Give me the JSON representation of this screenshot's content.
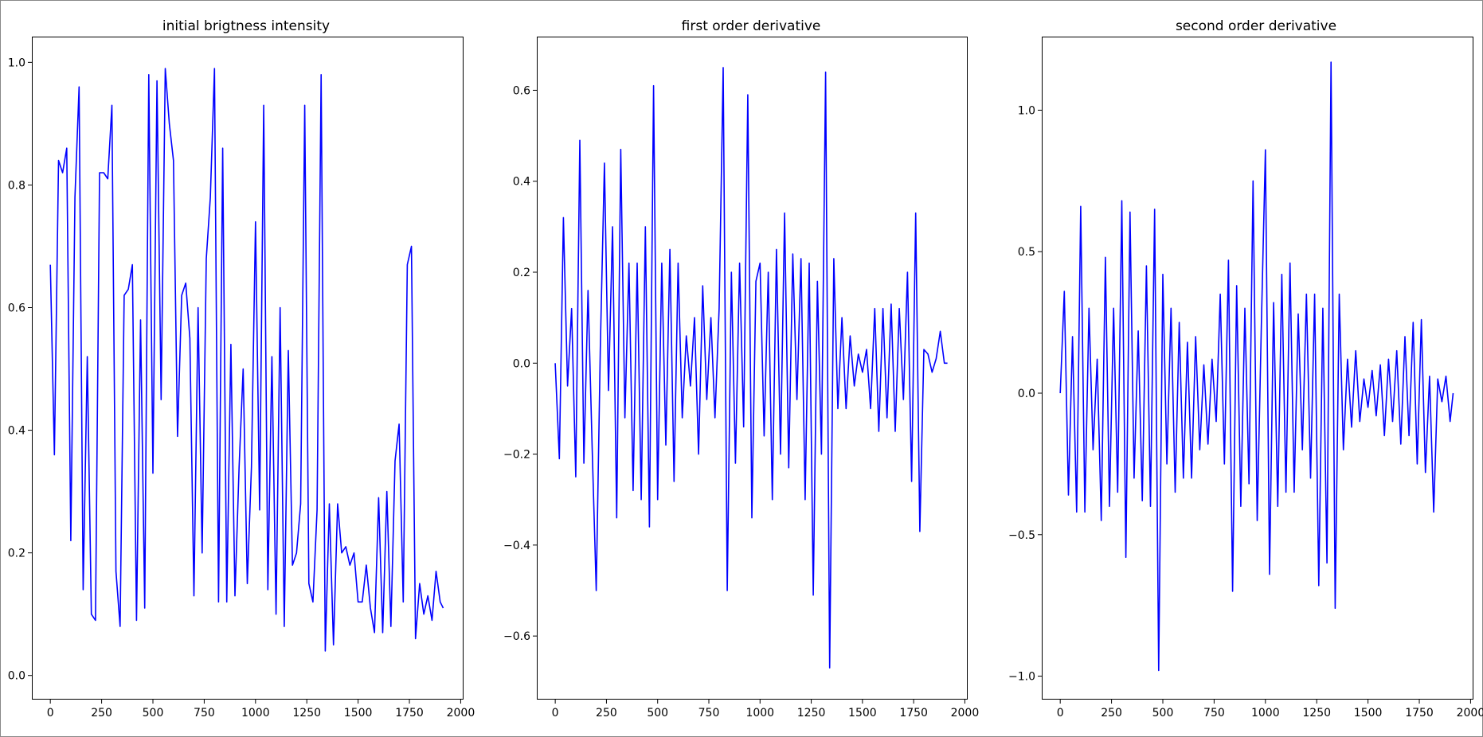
{
  "chart_data": [
    {
      "type": "line",
      "title": "initial brigtness intensity",
      "xlabel": "",
      "ylabel": "",
      "xlim": [
        -90,
        2010
      ],
      "ylim": [
        -0.038,
        1.042
      ],
      "xticks": [
        0,
        250,
        500,
        750,
        1000,
        1250,
        1500,
        1750,
        2000
      ],
      "xtick_labels": [
        "0",
        "250",
        "500",
        "750",
        "1000",
        "1250",
        "1500",
        "1750",
        "2000"
      ],
      "yticks": [
        0.0,
        0.2,
        0.4,
        0.6,
        0.8,
        1.0
      ],
      "ytick_labels": [
        "0.0",
        "0.2",
        "0.4",
        "0.6",
        "0.8",
        "1.0"
      ],
      "grid": false,
      "color": "#0000ff",
      "series": [
        {
          "x": [
            0,
            20,
            40,
            60,
            80,
            100,
            120,
            140,
            160,
            180,
            200,
            220,
            240,
            260,
            280,
            300,
            320,
            340,
            360,
            380,
            400,
            420,
            440,
            460,
            480,
            500,
            520,
            540,
            560,
            580,
            600,
            620,
            640,
            660,
            680,
            700,
            720,
            740,
            760,
            780,
            800,
            820,
            840,
            860,
            880,
            900,
            920,
            940,
            960,
            980,
            1000,
            1020,
            1040,
            1060,
            1080,
            1100,
            1120,
            1140,
            1160,
            1180,
            1200,
            1220,
            1240,
            1260,
            1280,
            1300,
            1320,
            1340,
            1360,
            1380,
            1400,
            1420,
            1440,
            1460,
            1480,
            1500,
            1520,
            1540,
            1560,
            1580,
            1600,
            1620,
            1640,
            1660,
            1680,
            1700,
            1720,
            1740,
            1760,
            1780,
            1800,
            1820,
            1840,
            1860,
            1880,
            1900,
            1915
          ],
          "y": [
            0.67,
            0.36,
            0.84,
            0.82,
            0.86,
            0.22,
            0.78,
            0.96,
            0.14,
            0.52,
            0.1,
            0.09,
            0.82,
            0.82,
            0.81,
            0.93,
            0.17,
            0.08,
            0.62,
            0.63,
            0.67,
            0.09,
            0.58,
            0.11,
            0.98,
            0.33,
            0.97,
            0.45,
            0.99,
            0.9,
            0.84,
            0.39,
            0.62,
            0.64,
            0.55,
            0.13,
            0.6,
            0.2,
            0.68,
            0.78,
            0.99,
            0.12,
            0.86,
            0.12,
            0.54,
            0.13,
            0.34,
            0.5,
            0.15,
            0.34,
            0.74,
            0.27,
            0.93,
            0.14,
            0.52,
            0.1,
            0.6,
            0.08,
            0.53,
            0.18,
            0.2,
            0.28,
            0.93,
            0.15,
            0.12,
            0.27,
            0.98,
            0.04,
            0.28,
            0.05,
            0.28,
            0.2,
            0.21,
            0.18,
            0.2,
            0.12,
            0.12,
            0.18,
            0.11,
            0.07,
            0.29,
            0.07,
            0.3,
            0.08,
            0.35,
            0.41,
            0.12,
            0.67,
            0.7,
            0.06,
            0.15,
            0.1,
            0.13,
            0.09,
            0.17,
            0.12,
            0.11
          ]
        }
      ]
    },
    {
      "type": "line",
      "title": "first order derivative",
      "xlabel": "",
      "ylabel": "",
      "xlim": [
        -90,
        2010
      ],
      "ylim": [
        -0.738,
        0.718
      ],
      "xticks": [
        0,
        250,
        500,
        750,
        1000,
        1250,
        1500,
        1750,
        2000
      ],
      "xtick_labels": [
        "0",
        "250",
        "500",
        "750",
        "1000",
        "1250",
        "1500",
        "1750",
        "2000"
      ],
      "yticks": [
        -0.6,
        -0.4,
        -0.2,
        0.0,
        0.2,
        0.4,
        0.6
      ],
      "ytick_labels": [
        "−0.6",
        "−0.4",
        "−0.2",
        "0.0",
        "0.2",
        "0.4",
        "0.6"
      ],
      "grid": false,
      "color": "#0000ff",
      "series": [
        {
          "x": [
            0,
            20,
            40,
            60,
            80,
            100,
            120,
            140,
            160,
            180,
            200,
            220,
            240,
            260,
            280,
            300,
            320,
            340,
            360,
            380,
            400,
            420,
            440,
            460,
            480,
            500,
            520,
            540,
            560,
            580,
            600,
            620,
            640,
            660,
            680,
            700,
            720,
            740,
            760,
            780,
            800,
            820,
            840,
            860,
            880,
            900,
            920,
            940,
            960,
            980,
            1000,
            1020,
            1040,
            1060,
            1080,
            1100,
            1120,
            1140,
            1160,
            1180,
            1200,
            1220,
            1240,
            1260,
            1280,
            1300,
            1320,
            1340,
            1360,
            1380,
            1400,
            1420,
            1440,
            1460,
            1480,
            1500,
            1520,
            1540,
            1560,
            1580,
            1600,
            1620,
            1640,
            1660,
            1680,
            1700,
            1720,
            1740,
            1760,
            1780,
            1800,
            1820,
            1840,
            1860,
            1880,
            1900,
            1915
          ],
          "y": [
            0.0,
            -0.21,
            0.32,
            -0.05,
            0.12,
            -0.25,
            0.49,
            -0.22,
            0.16,
            -0.18,
            -0.5,
            0.03,
            0.44,
            -0.06,
            0.3,
            -0.34,
            0.47,
            -0.12,
            0.22,
            -0.28,
            0.22,
            -0.3,
            0.3,
            -0.36,
            0.61,
            -0.3,
            0.22,
            -0.18,
            0.25,
            -0.26,
            0.22,
            -0.12,
            0.06,
            -0.05,
            0.1,
            -0.2,
            0.17,
            -0.08,
            0.1,
            -0.12,
            0.12,
            0.65,
            -0.5,
            0.2,
            -0.22,
            0.22,
            -0.14,
            0.59,
            -0.34,
            0.18,
            0.22,
            -0.16,
            0.2,
            -0.3,
            0.25,
            -0.2,
            0.33,
            -0.23,
            0.24,
            -0.08,
            0.23,
            -0.3,
            0.22,
            -0.51,
            0.18,
            -0.2,
            0.64,
            -0.67,
            0.23,
            -0.1,
            0.1,
            -0.1,
            0.06,
            -0.05,
            0.02,
            -0.02,
            0.03,
            -0.1,
            0.12,
            -0.15,
            0.12,
            -0.12,
            0.13,
            -0.15,
            0.12,
            -0.08,
            0.2,
            -0.26,
            0.33,
            -0.37,
            0.03,
            0.02,
            -0.02,
            0.01,
            0.07,
            0.0,
            0.0
          ]
        }
      ]
    },
    {
      "type": "line",
      "title": "second order derivative",
      "xlabel": "",
      "ylabel": "",
      "xlim": [
        -90,
        2010
      ],
      "ylim": [
        -1.08,
        1.26
      ],
      "xticks": [
        0,
        250,
        500,
        750,
        1000,
        1250,
        1500,
        1750,
        2000
      ],
      "xtick_labels": [
        "0",
        "250",
        "500",
        "750",
        "1000",
        "1250",
        "1500",
        "1750",
        "2000"
      ],
      "yticks": [
        -1.0,
        -0.5,
        0.0,
        0.5,
        1.0
      ],
      "ytick_labels": [
        "−1.0",
        "−0.5",
        "0.0",
        "0.5",
        "1.0"
      ],
      "grid": false,
      "color": "#0000ff",
      "series": [
        {
          "x": [
            0,
            20,
            40,
            60,
            80,
            100,
            120,
            140,
            160,
            180,
            200,
            220,
            240,
            260,
            280,
            300,
            320,
            340,
            360,
            380,
            400,
            420,
            440,
            460,
            480,
            500,
            520,
            540,
            560,
            580,
            600,
            620,
            640,
            660,
            680,
            700,
            720,
            740,
            760,
            780,
            800,
            820,
            840,
            860,
            880,
            900,
            920,
            940,
            960,
            980,
            1000,
            1020,
            1040,
            1060,
            1080,
            1100,
            1120,
            1140,
            1160,
            1180,
            1200,
            1220,
            1240,
            1260,
            1280,
            1300,
            1320,
            1340,
            1360,
            1380,
            1400,
            1420,
            1440,
            1460,
            1480,
            1500,
            1520,
            1540,
            1560,
            1580,
            1600,
            1620,
            1640,
            1660,
            1680,
            1700,
            1720,
            1740,
            1760,
            1780,
            1800,
            1820,
            1840,
            1860,
            1880,
            1900,
            1915
          ],
          "y": [
            0.0,
            0.36,
            -0.36,
            0.2,
            -0.42,
            0.66,
            -0.42,
            0.3,
            -0.2,
            0.12,
            -0.45,
            0.48,
            -0.4,
            0.3,
            -0.35,
            0.68,
            -0.58,
            0.64,
            -0.3,
            0.22,
            -0.38,
            0.45,
            -0.4,
            0.65,
            -0.98,
            0.42,
            -0.25,
            0.3,
            -0.35,
            0.25,
            -0.3,
            0.18,
            -0.3,
            0.2,
            -0.2,
            0.1,
            -0.18,
            0.12,
            -0.1,
            0.35,
            -0.25,
            0.47,
            -0.7,
            0.38,
            -0.4,
            0.3,
            -0.32,
            0.75,
            -0.45,
            0.24,
            0.86,
            -0.64,
            0.32,
            -0.4,
            0.42,
            -0.35,
            0.46,
            -0.35,
            0.28,
            -0.2,
            0.35,
            -0.3,
            0.35,
            -0.68,
            0.3,
            -0.6,
            1.17,
            -0.76,
            0.35,
            -0.2,
            0.12,
            -0.12,
            0.15,
            -0.1,
            0.05,
            -0.05,
            0.08,
            -0.08,
            0.1,
            -0.15,
            0.12,
            -0.1,
            0.15,
            -0.18,
            0.2,
            -0.15,
            0.25,
            -0.25,
            0.26,
            -0.28,
            0.06,
            -0.42,
            0.05,
            -0.03,
            0.06,
            -0.1,
            0.0
          ]
        }
      ]
    }
  ]
}
